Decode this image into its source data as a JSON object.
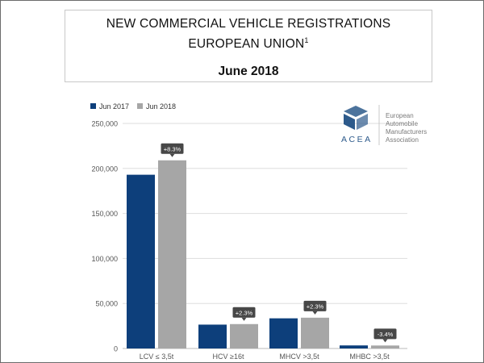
{
  "title": {
    "line1": "NEW COMMERCIAL VEHICLE REGISTRATIONS",
    "line2": "EUROPEAN UNION",
    "line2_sup": "1",
    "subtitle": "June 2018"
  },
  "logo": {
    "acronym": "ACEA",
    "name_lines": [
      "European",
      "Automobile",
      "Manufacturers",
      "Association"
    ]
  },
  "colors": {
    "jun2017": "#0d3f7b",
    "jun2018": "#a6a6a6",
    "badge": "#474747",
    "grid": "#dddddd",
    "axis_text": "#555555",
    "logo": "#2d5a8b"
  },
  "chart_data": {
    "type": "bar",
    "categories": [
      "LCV ≤ 3,5t",
      "HCV ≥16t",
      "MHCV >3,5t",
      "MHBC >3,5t"
    ],
    "series": [
      {
        "name": "Jun 2017",
        "values": [
          193000,
          26500,
          33500,
          3400
        ]
      },
      {
        "name": "Jun 2018",
        "values": [
          209000,
          27100,
          34200,
          3300
        ]
      }
    ],
    "change_labels": [
      "+8.3%",
      "+2.3%",
      "+2.3%",
      "-3.4%"
    ],
    "ylim": [
      0,
      250000
    ],
    "yticks": [
      0,
      50000,
      100000,
      150000,
      200000,
      250000
    ],
    "ytick_labels": [
      "0",
      "50,000",
      "100,000",
      "150,000",
      "200,000",
      "250,000"
    ],
    "legend_position": "top-left",
    "grid": true
  }
}
